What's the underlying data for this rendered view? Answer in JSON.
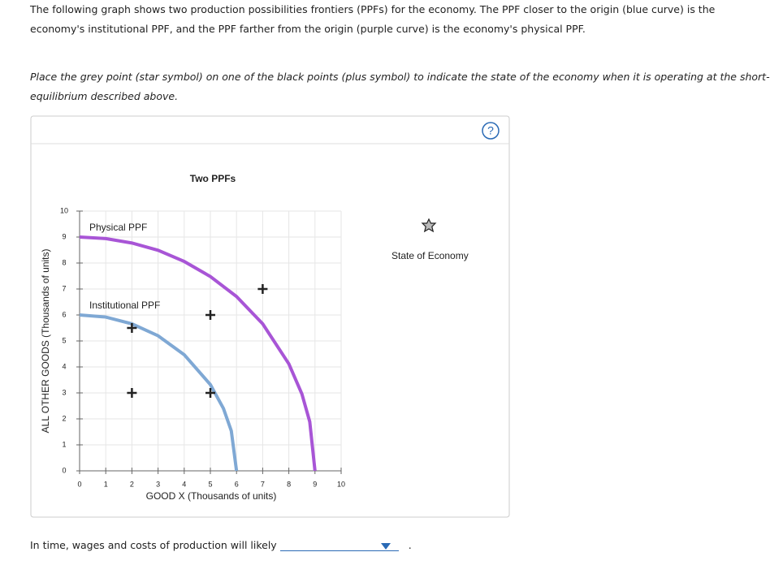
{
  "intro": "The following graph shows two production possibilities frontiers (PPFs) for the economy. The PPF closer to the origin (blue curve) is the economy's institutional PPF, and the PPF farther from the origin (purple curve) is the economy's physical PPF.",
  "instruction": "Place the grey point (star symbol) on one of the black points (plus symbol) to indicate the state of the economy when it is operating at the short-run equilibrium described above.",
  "chart_data": {
    "type": "line",
    "title": "Two PPFs",
    "x_label": "GOOD X (Thousands of units)",
    "y_label": "ALL OTHER GOODS (Thousands of units)",
    "xlim": [
      0,
      10
    ],
    "ylim": [
      0,
      10
    ],
    "xticks": [
      0,
      1,
      2,
      3,
      4,
      5,
      6,
      7,
      8,
      9,
      10
    ],
    "yticks": [
      0,
      1,
      2,
      3,
      4,
      5,
      6,
      7,
      8,
      9,
      10
    ],
    "grid": true,
    "series": [
      {
        "name": "Physical PPF",
        "color": "#a855d6",
        "x": [
          0,
          1,
          2,
          3,
          4,
          5,
          6,
          7,
          8,
          8.5,
          8.8,
          9
        ],
        "values": [
          9,
          8.94,
          8.77,
          8.49,
          8.06,
          7.48,
          6.71,
          5.66,
          4.12,
          2.96,
          1.89,
          0
        ]
      },
      {
        "name": "Institutional PPF",
        "color": "#7fa8d4",
        "x": [
          0,
          1,
          2,
          3,
          4,
          5,
          5.5,
          5.8,
          6
        ],
        "values": [
          6,
          5.92,
          5.66,
          5.2,
          4.47,
          3.32,
          2.4,
          1.54,
          0
        ]
      }
    ],
    "points": {
      "x": [
        2,
        2,
        5,
        5,
        7
      ],
      "values": [
        5.5,
        3,
        6,
        3,
        7
      ]
    },
    "legend_item": "State of Economy"
  },
  "question": {
    "text": "In time, wages and costs of production will likely",
    "end": "."
  }
}
